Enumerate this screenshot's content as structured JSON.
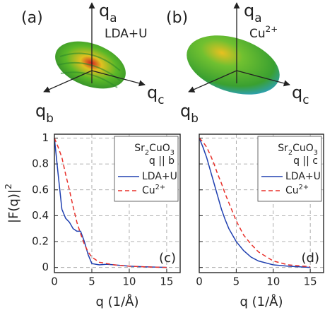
{
  "figures": [
    {
      "label": "(a)",
      "text": [
        [
          "LDA+U",
          "normal"
        ]
      ],
      "axes": [
        [
          [
            "q",
            "normal"
          ],
          [
            "a",
            "sub"
          ]
        ],
        [
          [
            "q",
            "normal"
          ],
          [
            "c",
            "sub"
          ]
        ],
        [
          [
            "q",
            "normal"
          ],
          [
            "b",
            "sub"
          ]
        ]
      ]
    },
    {
      "label": "(b)",
      "text": [
        [
          "Cu",
          "normal"
        ],
        [
          "2+",
          "super"
        ]
      ],
      "axes": [
        [
          [
            "q",
            "normal"
          ],
          [
            "a",
            "sub"
          ]
        ],
        [
          [
            "q",
            "normal"
          ],
          [
            "c",
            "sub"
          ]
        ],
        [
          [
            "q",
            "normal"
          ],
          [
            "b",
            "sub"
          ]
        ]
      ]
    }
  ],
  "chart_data": [
    {
      "type": "line",
      "panel_label": "(c)",
      "xlabel": "q (1/Å)",
      "ylabel": [
        [
          "|F(q)|",
          "normal"
        ],
        [
          "2",
          "super"
        ]
      ],
      "legend_title": [
        [
          [
            "Sr",
            "normal"
          ],
          [
            "2",
            "sub"
          ],
          [
            "CuO",
            "normal"
          ],
          [
            "3",
            "sub"
          ]
        ],
        [
          [
            "q || b",
            "normal"
          ]
        ]
      ],
      "x": [
        0,
        0.5,
        1,
        1.5,
        2,
        2.5,
        3,
        3.5,
        4,
        4.5,
        5,
        6,
        7,
        8,
        10,
        12,
        15
      ],
      "series": [
        {
          "name": [
            [
              "LDA+U",
              "normal"
            ]
          ],
          "color": "#2040b0",
          "dash": "solid",
          "values": [
            1,
            0.72,
            0.45,
            0.38,
            0.35,
            0.3,
            0.28,
            0.28,
            0.2,
            0.1,
            0.03,
            0.02,
            0.025,
            0.02,
            0.01,
            0.005,
            0
          ]
        },
        {
          "name": [
            [
              "Cu",
              "normal"
            ],
            [
              "2+",
              "super"
            ]
          ],
          "color": "#e8302a",
          "dash": "dashed",
          "values": [
            1,
            0.93,
            0.85,
            0.72,
            0.6,
            0.47,
            0.35,
            0.26,
            0.18,
            0.12,
            0.08,
            0.04,
            0.03,
            0.02,
            0.01,
            0.005,
            0
          ]
        }
      ],
      "xlim": [
        0,
        16.8
      ],
      "ylim": [
        -0.04,
        1.03
      ],
      "xticks": [
        0,
        5,
        10,
        15
      ],
      "yticks": [
        0,
        0.2,
        0.4,
        0.6,
        0.8,
        1
      ],
      "grid": true,
      "ytick_labels": true,
      "legend": "upper right"
    },
    {
      "type": "line",
      "panel_label": "(d)",
      "xlabel": "q (1/Å)",
      "legend_title": [
        [
          [
            "Sr",
            "normal"
          ],
          [
            "2",
            "sub"
          ],
          [
            "CuO",
            "normal"
          ],
          [
            "3",
            "sub"
          ]
        ],
        [
          [
            "q || c",
            "normal"
          ]
        ]
      ],
      "x": [
        0,
        0.5,
        1,
        1.5,
        2,
        2.5,
        3,
        3.5,
        4,
        4.5,
        5,
        6,
        7,
        8,
        10,
        12,
        15
      ],
      "series": [
        {
          "name": [
            [
              "LDA+U",
              "normal"
            ]
          ],
          "color": "#2040b0",
          "dash": "solid",
          "values": [
            1,
            0.93,
            0.85,
            0.75,
            0.65,
            0.55,
            0.45,
            0.37,
            0.3,
            0.25,
            0.2,
            0.13,
            0.08,
            0.05,
            0.02,
            0.01,
            0
          ]
        },
        {
          "name": [
            [
              "Cu",
              "normal"
            ],
            [
              "2+",
              "super"
            ]
          ],
          "color": "#e8302a",
          "dash": "dashed",
          "values": [
            1,
            0.97,
            0.93,
            0.87,
            0.8,
            0.72,
            0.65,
            0.57,
            0.5,
            0.43,
            0.36,
            0.25,
            0.18,
            0.12,
            0.05,
            0.02,
            0.005
          ]
        }
      ],
      "xlim": [
        0,
        16.8
      ],
      "ylim": [
        -0.04,
        1.03
      ],
      "xticks": [
        0,
        5,
        10,
        15
      ],
      "yticks": [
        0,
        0.2,
        0.4,
        0.6,
        0.8,
        1
      ],
      "grid": true,
      "ytick_labels": false,
      "legend": "upper right"
    }
  ]
}
